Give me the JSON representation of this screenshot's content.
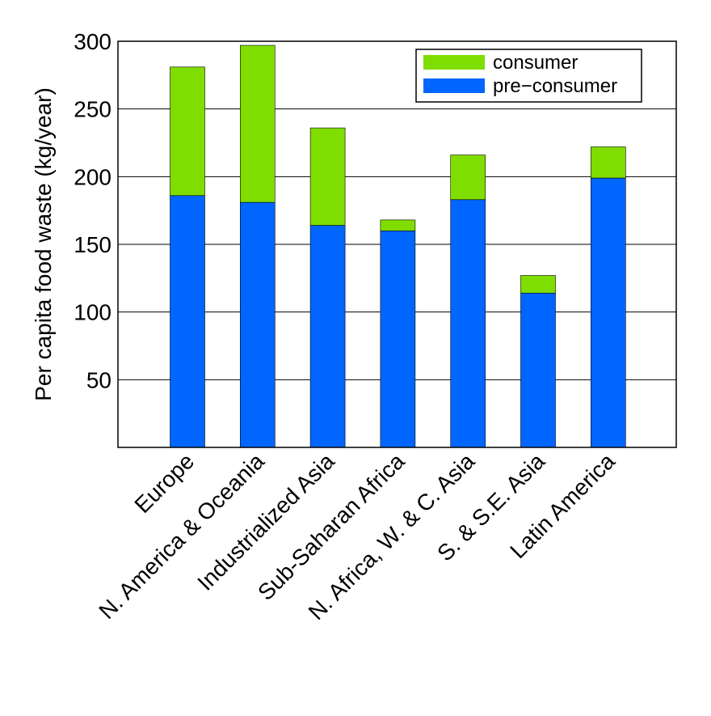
{
  "chart_data": {
    "type": "bar",
    "stacked": true,
    "title": "",
    "xlabel": "",
    "ylabel": "Per capita food waste (kg/year)",
    "ylim": [
      0,
      300
    ],
    "yticks": [
      50,
      100,
      150,
      200,
      250,
      300
    ],
    "grid": "horizontal",
    "legend_position": "top-right",
    "categories": [
      "Europe",
      "N. America & Oceania",
      "Industrialized Asia",
      "Sub-Saharan Africa",
      "N. Africa, W. & C. Asia",
      "S. & S.E. Asia",
      "Latin America"
    ],
    "series": [
      {
        "name": "pre−consumer",
        "color": "#0066ff",
        "values": [
          186,
          181,
          164,
          160,
          183,
          114,
          199
        ]
      },
      {
        "name": "consumer",
        "color": "#80dd00",
        "values": [
          95,
          116,
          72,
          8,
          33,
          13,
          23
        ]
      }
    ]
  }
}
